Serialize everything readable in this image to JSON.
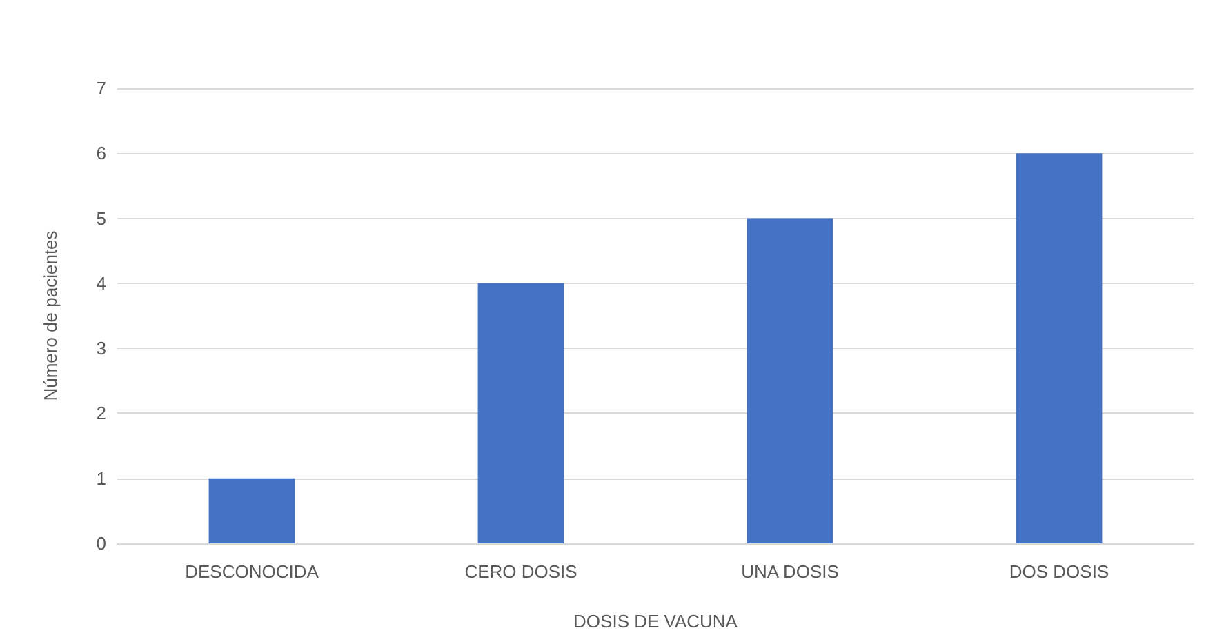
{
  "chart_data": {
    "type": "bar",
    "xlabel": "DOSIS DE VACUNA",
    "ylabel": "Número de pacientes",
    "categories": [
      "DESCONOCIDA",
      "CERO DOSIS",
      "UNA DOSIS",
      "DOS DOSIS"
    ],
    "values": [
      1,
      4,
      5,
      6
    ],
    "color": "#4472c4",
    "ylim": [
      0,
      7
    ],
    "yticks": [
      0,
      1,
      2,
      3,
      4,
      5,
      6,
      7
    ],
    "grid": "y"
  }
}
